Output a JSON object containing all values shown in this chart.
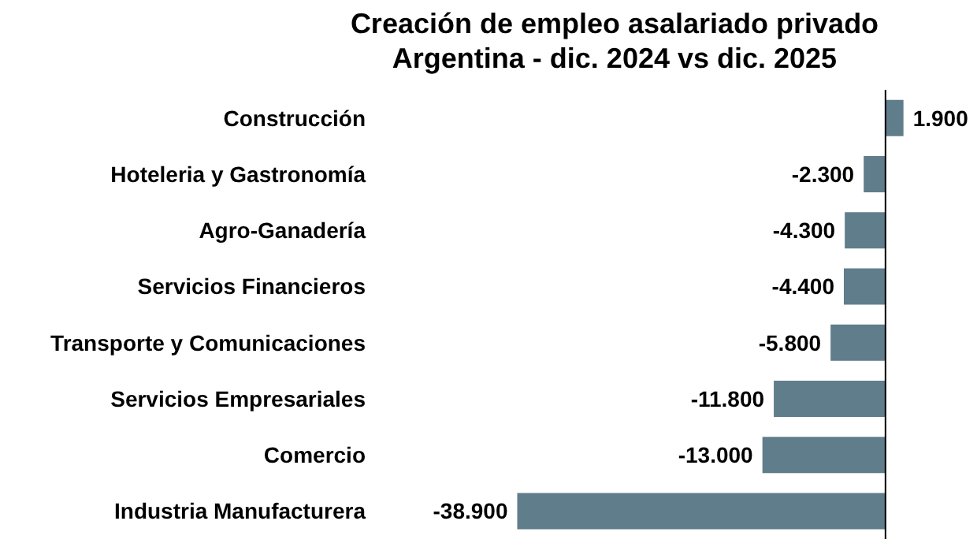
{
  "chart_data": {
    "type": "bar",
    "orientation": "horizontal",
    "title": "Creación de empleo asalariado privado\nArgentina - dic. 2024 vs dic. 2025",
    "categories": [
      "Construcción",
      "Hoteleria y Gastronomía",
      "Agro-Ganadería",
      "Servicios Financieros",
      "Transporte y Comunicaciones",
      "Servicios Empresariales",
      "Comercio",
      "Industria Manufacturera"
    ],
    "values": [
      1900,
      -2300,
      -4300,
      -4400,
      -5800,
      -11800,
      -13000,
      -38900
    ],
    "value_labels": [
      "1.900",
      "-2.300",
      "-4.300",
      "-4.400",
      "-5.800",
      "-11.800",
      "-13.000",
      "-38.900"
    ],
    "color": "#607d8b"
  }
}
